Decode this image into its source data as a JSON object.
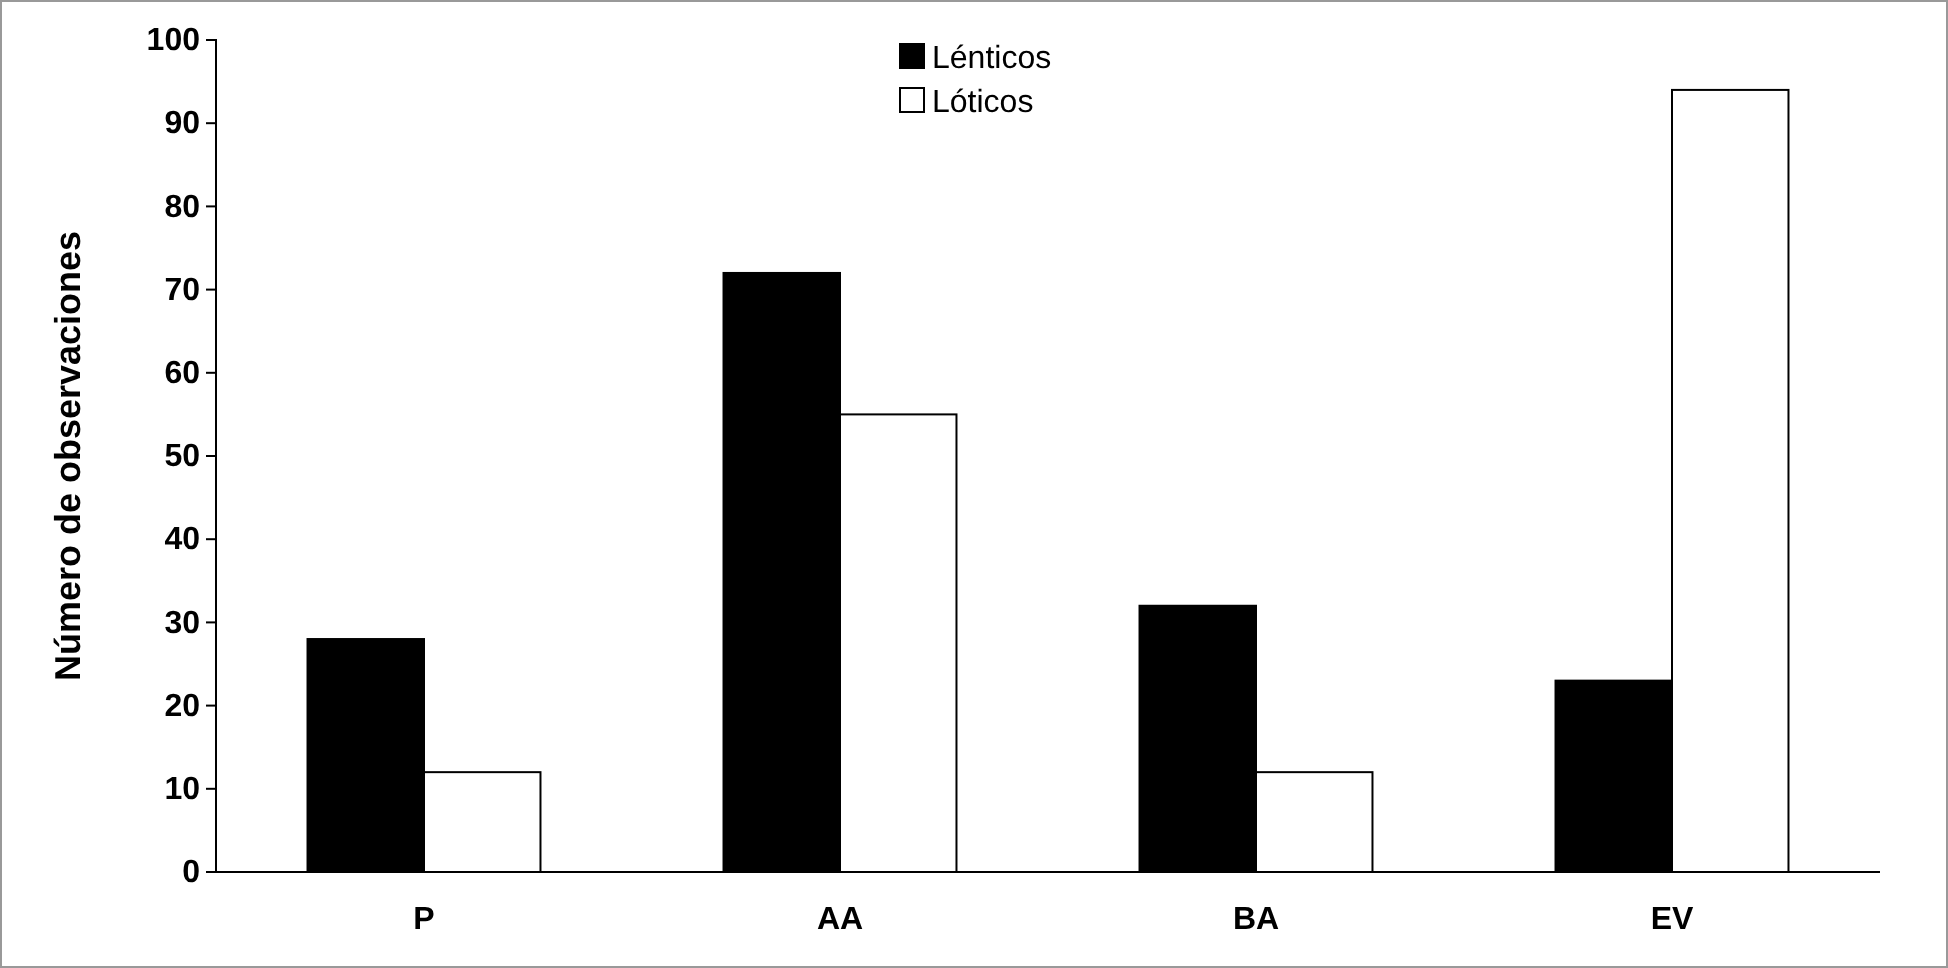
{
  "chart_data": {
    "type": "bar",
    "ylabel": "Número de observaciones",
    "categories": [
      "P",
      "AA",
      "BA",
      "EV"
    ],
    "series": [
      {
        "name": "Lénticos",
        "color": "#000000",
        "values": [
          28,
          72,
          32,
          23
        ]
      },
      {
        "name": "Lóticos",
        "color": "#ffffff",
        "values": [
          12,
          55,
          12,
          94
        ]
      }
    ],
    "ylim": [
      0,
      100
    ],
    "yticks": [
      0,
      10,
      20,
      30,
      40,
      50,
      60,
      70,
      80,
      90,
      100
    ],
    "grid": false,
    "legend": "top"
  }
}
